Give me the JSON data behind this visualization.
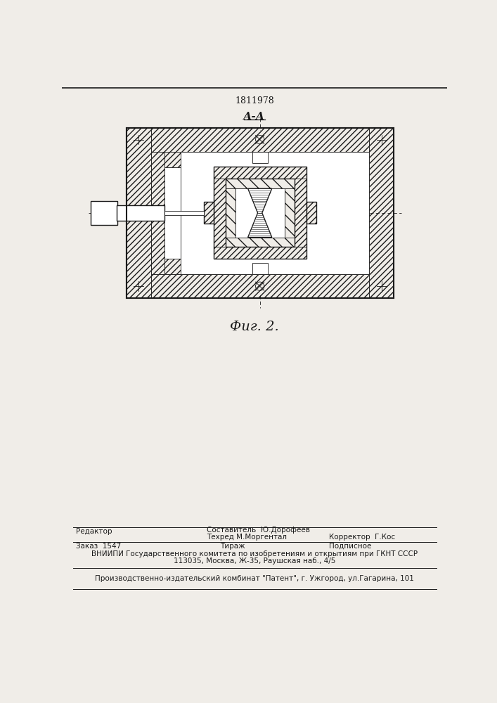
{
  "title_number": "1811978",
  "section_label": "А-А",
  "fig_label": "Фиг. 2.",
  "editor_label": "Редактор",
  "composer": "Составитель  Ю.Дорофеев",
  "techred": "Техред М.Моргентал",
  "corrector": "Корректор  Г.Кос",
  "order": "Заказ  1547",
  "tirazh": "Тираж",
  "podpisnoe": "Подписное",
  "vniip1": "ВНИИПИ Государственного комитета по изобретениям и открытиям при ГКНТ СССР",
  "vniip2": "113035, Москва, Ж-35, Раушская наб., 4/5",
  "factory": "Производственно-издательский комбинат \"Патент\", г. Ужгород, ул.Гагарина, 101",
  "bg_color": "#f0ede8",
  "line_color": "#1a1a1a"
}
